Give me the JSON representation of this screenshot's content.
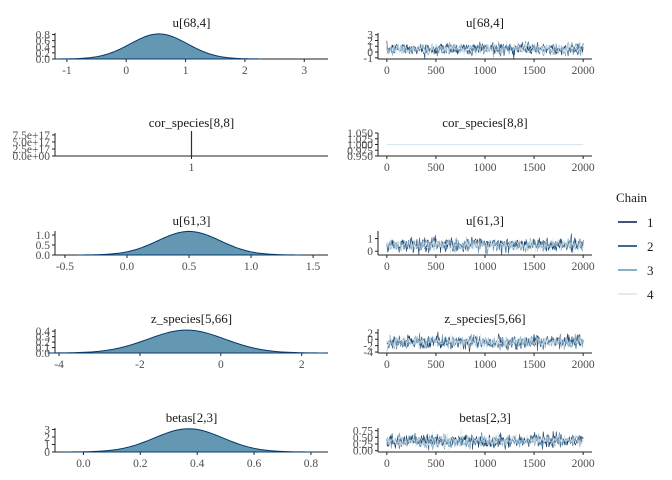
{
  "chart_data": {
    "type": "mcmc_diagnostics",
    "legend": {
      "title": "Chain",
      "placement": "right",
      "entries": [
        "1",
        "2",
        "3",
        "4"
      ],
      "colors": [
        "#011f4b",
        "#03396c",
        "#6497b1",
        "#d6e5ee"
      ]
    },
    "density_fill": "#6497b1",
    "density_line": "#03396c",
    "parameters": [
      {
        "name": "u[68,4]",
        "density": {
          "x_ticks": [
            "-1",
            "0",
            "1",
            "2",
            "3"
          ],
          "x_tick_values": [
            -1,
            0,
            1,
            2,
            3
          ],
          "xlim": [
            -1.2,
            3.4
          ],
          "y_ticks": [
            "0.0",
            "0.2",
            "0.4",
            "0.6",
            "0.8"
          ],
          "y_tick_values": [
            0,
            0.2,
            0.4,
            0.6,
            0.8
          ],
          "ylim": [
            0,
            0.85
          ],
          "mean": 0.55,
          "sd": 0.48,
          "peak": 0.82
        },
        "trace": {
          "x_ticks": [
            "0",
            "500",
            "1000",
            "1500",
            "2000"
          ],
          "x_tick_values": [
            0,
            500,
            1000,
            1500,
            2000
          ],
          "xlim": [
            0,
            2000
          ],
          "y_ticks": [
            "-1",
            "0",
            "1",
            "2",
            "3"
          ],
          "y_tick_values": [
            -1,
            0,
            1,
            2,
            3
          ],
          "ylim": [
            -1.2,
            3.3
          ],
          "mean": 0.55,
          "sd": 0.48
        }
      },
      {
        "name": "cor_species[8,8]",
        "density": {
          "x_ticks": [
            "1"
          ],
          "x_tick_values": [
            1
          ],
          "xlim": [
            0.96,
            1.04
          ],
          "y_ticks": [
            "0.0e+00",
            "2.5e+17",
            "5.0e+17",
            "7.5e+17"
          ],
          "y_tick_values": [
            0,
            2.5,
            5.0,
            7.5
          ],
          "ylim": [
            0,
            8.2
          ],
          "spike_at": 1
        },
        "trace": {
          "x_ticks": [
            "0",
            "500",
            "1000",
            "1500",
            "2000"
          ],
          "x_tick_values": [
            0,
            500,
            1000,
            1500,
            2000
          ],
          "xlim": [
            0,
            2000
          ],
          "y_ticks": [
            "0.950",
            "0.975",
            "1.000",
            "1.025",
            "1.050"
          ],
          "y_tick_values": [
            0.95,
            0.975,
            1.0,
            1.025,
            1.05
          ],
          "ylim": [
            0.95,
            1.05
          ],
          "constant": 1
        }
      },
      {
        "name": "u[61,3]",
        "density": {
          "x_ticks": [
            "-0.5",
            "0.0",
            "0.5",
            "1.0",
            "1.5"
          ],
          "x_tick_values": [
            -0.5,
            0,
            0.5,
            1.0,
            1.5
          ],
          "xlim": [
            -0.58,
            1.62
          ],
          "y_ticks": [
            "0.0",
            "0.5",
            "1.0"
          ],
          "y_tick_values": [
            0,
            0.5,
            1.0
          ],
          "ylim": [
            0,
            1.2
          ],
          "mean": 0.5,
          "sd": 0.25,
          "peak": 1.18
        },
        "trace": {
          "x_ticks": [
            "0",
            "500",
            "1000",
            "1500",
            "2000"
          ],
          "x_tick_values": [
            0,
            500,
            1000,
            1500,
            2000
          ],
          "xlim": [
            0,
            2000
          ],
          "y_ticks": [
            "0",
            "1"
          ],
          "y_tick_values": [
            0,
            1
          ],
          "ylim": [
            -0.3,
            1.6
          ],
          "mean": 0.5,
          "sd": 0.25
        }
      },
      {
        "name": "z_species[5,66]",
        "density": {
          "x_ticks": [
            "-4",
            "-2",
            "0",
            "2"
          ],
          "x_tick_values": [
            -4,
            -2,
            0,
            2
          ],
          "xlim": [
            -4.1,
            2.65
          ],
          "y_ticks": [
            "0.0",
            "0.1",
            "0.2",
            "0.3",
            "0.4"
          ],
          "y_tick_values": [
            0,
            0.1,
            0.2,
            0.3,
            0.4
          ],
          "ylim": [
            0,
            0.44
          ],
          "mean": -0.85,
          "sd": 0.95,
          "peak": 0.42
        },
        "trace": {
          "x_ticks": [
            "0",
            "500",
            "1000",
            "1500",
            "2000"
          ],
          "x_tick_values": [
            0,
            500,
            1000,
            1500,
            2000
          ],
          "xlim": [
            0,
            2000
          ],
          "y_ticks": [
            "-4",
            "-2",
            "0",
            "2"
          ],
          "y_tick_values": [
            -4,
            -2,
            0,
            2
          ],
          "ylim": [
            -4.3,
            3.2
          ],
          "mean": -0.85,
          "sd": 0.95
        }
      },
      {
        "name": "betas[2,3]",
        "density": {
          "x_ticks": [
            "0.0",
            "0.2",
            "0.4",
            "0.6",
            "0.8"
          ],
          "x_tick_values": [
            0,
            0.2,
            0.4,
            0.6,
            0.8
          ],
          "xlim": [
            -0.1,
            0.86
          ],
          "y_ticks": [
            "0",
            "1",
            "2",
            "3"
          ],
          "y_tick_values": [
            0,
            1,
            2,
            3
          ],
          "ylim": [
            0,
            3.2
          ],
          "mean": 0.37,
          "sd": 0.12,
          "peak": 3.1
        },
        "trace": {
          "x_ticks": [
            "0",
            "500",
            "1000",
            "1500",
            "2000"
          ],
          "x_tick_values": [
            0,
            500,
            1000,
            1500,
            2000
          ],
          "xlim": [
            0,
            2000
          ],
          "y_ticks": [
            "0.00",
            "0.25",
            "0.50",
            "0.75"
          ],
          "y_tick_values": [
            0,
            0.25,
            0.5,
            0.75
          ],
          "ylim": [
            -0.05,
            0.85
          ],
          "mean": 0.37,
          "sd": 0.12
        }
      }
    ]
  }
}
